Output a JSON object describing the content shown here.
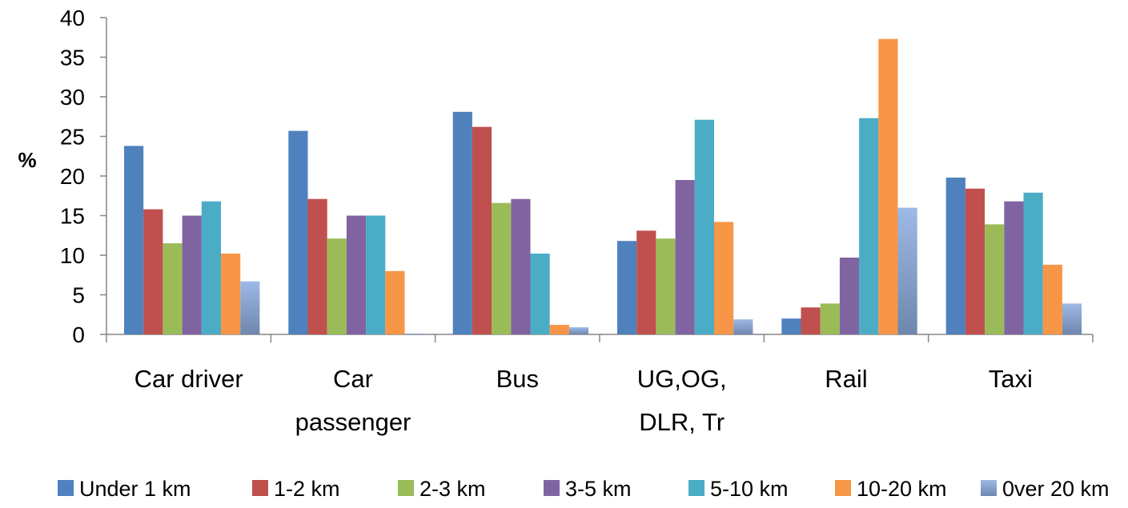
{
  "chart_data": {
    "type": "bar",
    "ylabel": "%",
    "xlabel": "",
    "ylim": [
      0,
      40
    ],
    "yticks": [
      "0",
      "5",
      "10",
      "15",
      "20",
      "25",
      "30",
      "35",
      "40"
    ],
    "grid": false,
    "legend_position": "bottom",
    "categories": [
      [
        "Car driver"
      ],
      [
        "Car",
        "passenger"
      ],
      [
        "Bus"
      ],
      [
        "UG,OG,",
        "DLR, Tr"
      ],
      [
        "Rail"
      ],
      [
        "Taxi"
      ]
    ],
    "series": [
      {
        "name": "Under 1 km",
        "color": "#4F81BD",
        "values": [
          23.8,
          25.7,
          28.1,
          11.8,
          2.0,
          19.8
        ]
      },
      {
        "name": "1-2 km",
        "color": "#C0504D",
        "values": [
          15.8,
          17.1,
          26.2,
          13.1,
          3.4,
          18.4
        ]
      },
      {
        "name": "2-3 km",
        "color": "#9BBB59",
        "values": [
          11.5,
          12.1,
          16.6,
          12.1,
          3.9,
          13.9
        ]
      },
      {
        "name": "3-5 km",
        "color": "#8064A2",
        "values": [
          15.0,
          15.0,
          17.1,
          19.5,
          9.7,
          16.8
        ]
      },
      {
        "name": "5-10 km",
        "color": "#4BACC6",
        "values": [
          16.8,
          15.0,
          10.2,
          27.1,
          27.3,
          17.9
        ]
      },
      {
        "name": "10-20 km",
        "color": "#F79646",
        "values": [
          10.2,
          8.0,
          1.2,
          14.2,
          37.3,
          8.8
        ]
      },
      {
        "name": "0ver 20 km",
        "color": "#8DA9D9",
        "values": [
          6.7,
          0.1,
          0.9,
          1.9,
          16.0,
          3.9
        ]
      }
    ]
  }
}
